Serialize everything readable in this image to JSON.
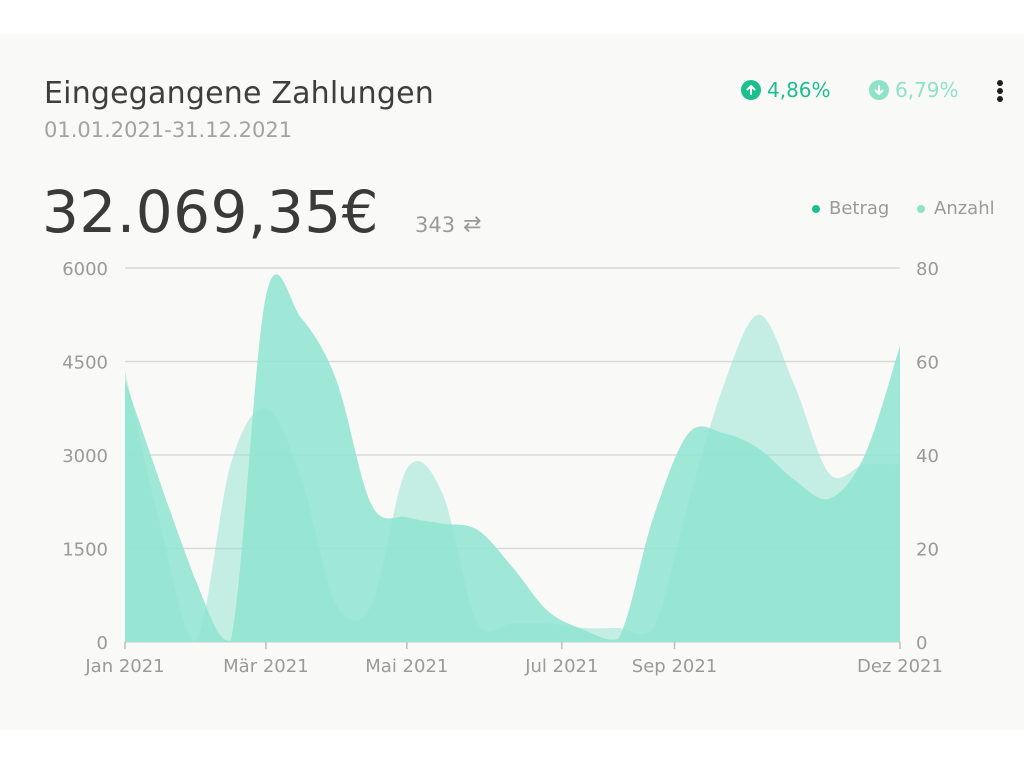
{
  "header": {
    "title": "Eingegangene Zahlungen",
    "date_range": "01.01.2021-31.12.2021",
    "trend_up": "4,86%",
    "trend_down": "6,79%",
    "menu_icon": "more-vertical-icon"
  },
  "summary": {
    "total": "32.069,35€",
    "count": "343",
    "count_icon": "⇄"
  },
  "colors": {
    "betrag": "#1bbf8f",
    "anzahl": "#8ee2c8",
    "area": "#8fe4d0",
    "area_light": "#c6eee3",
    "grid": "#d9d9d9"
  },
  "chart_data": {
    "type": "area",
    "legend": [
      "Betrag",
      "Anzahl"
    ],
    "legend_position": "top-right",
    "grid": true,
    "x_tick_labels": [
      "Jan 2021",
      "Mär 2021",
      "Mai 2021",
      "Jul 2021",
      "Sep 2021",
      "Dez 2021"
    ],
    "x_tick_months": [
      1,
      3,
      5,
      7.2,
      8.8,
      12
    ],
    "y_left": {
      "ticks": [
        "0",
        "1500",
        "3000",
        "4500",
        "6000"
      ],
      "lim": [
        0,
        6000
      ]
    },
    "y_right": {
      "ticks": [
        "0",
        "20",
        "40",
        "60",
        "80"
      ],
      "lim": [
        0,
        80
      ]
    },
    "series": [
      {
        "name": "Betrag",
        "axis": "left",
        "x": [
          1,
          2,
          2.5,
          3,
          3.5,
          4,
          4.5,
          5,
          5.5,
          6,
          6.5,
          7,
          7.5,
          8,
          8.5,
          9,
          9.5,
          10,
          10.5,
          11,
          11.5,
          12
        ],
        "values": [
          4200,
          1000,
          20,
          5550,
          5200,
          4200,
          2200,
          2000,
          1900,
          1800,
          1200,
          500,
          200,
          50,
          2000,
          3350,
          3350,
          3100,
          2600,
          2300,
          3000,
          4750
        ]
      },
      {
        "name": "Anzahl",
        "axis": "right",
        "x": [
          1,
          1.5,
          2,
          2.5,
          3,
          3.5,
          4,
          4.5,
          5,
          5.5,
          6,
          6.5,
          7,
          7.5,
          8,
          8.5,
          9,
          9.5,
          10,
          10.5,
          11,
          11.5,
          12
        ],
        "values": [
          58,
          25,
          0,
          38,
          50,
          35,
          8,
          8,
          37,
          32,
          4,
          4,
          4,
          3,
          3,
          3,
          30,
          55,
          70,
          55,
          36,
          38,
          38
        ]
      }
    ]
  }
}
